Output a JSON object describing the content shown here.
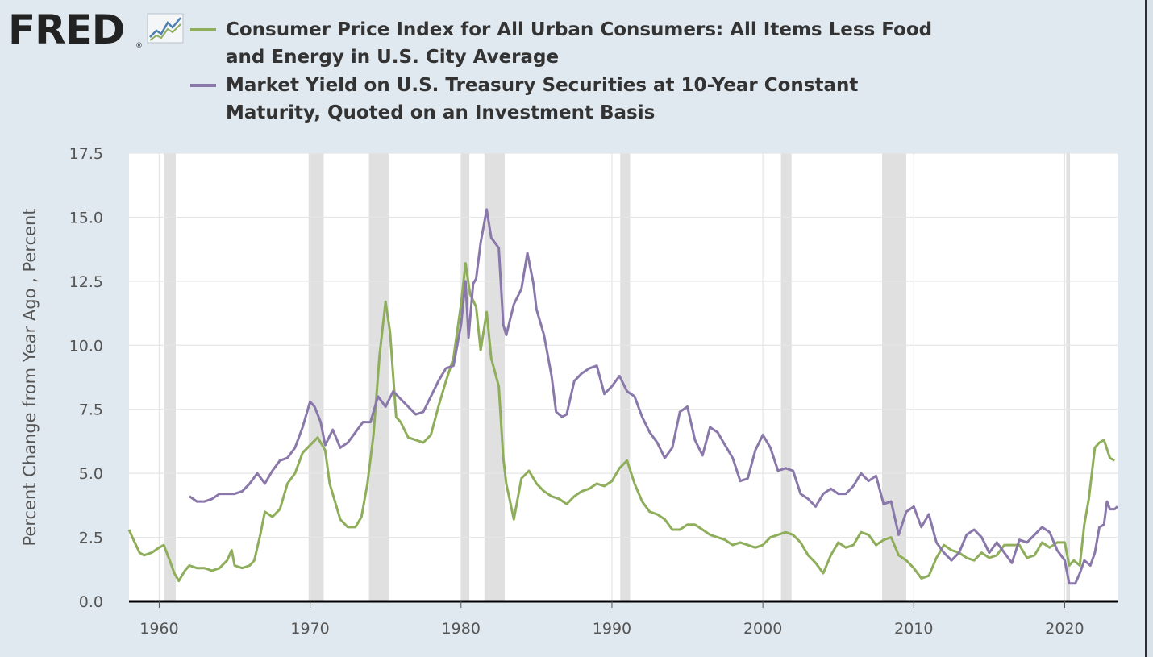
{
  "logo": {
    "text": "FRED",
    "reg": "®",
    "icon": "fred-graph-icon"
  },
  "chart_data": {
    "type": "line",
    "title": "",
    "xlabel": "",
    "ylabel": "Percent Change from Year Ago , Percent",
    "xlim": [
      1958.0,
      2023.5
    ],
    "ylim": [
      0,
      17.5
    ],
    "y_ticks": [
      "0.0",
      "2.5",
      "5.0",
      "7.5",
      "10.0",
      "12.5",
      "15.0",
      "17.5"
    ],
    "x_ticks": [
      "1960",
      "1970",
      "1980",
      "1990",
      "2000",
      "2010",
      "2020"
    ],
    "grid": true,
    "legend_placement": "top-left",
    "recessions": [
      [
        1960.3,
        1961.1
      ],
      [
        1969.9,
        1970.9
      ],
      [
        1973.9,
        1975.2
      ],
      [
        1980.0,
        1980.55
      ],
      [
        1981.55,
        1982.9
      ],
      [
        1990.55,
        1991.2
      ],
      [
        2001.2,
        2001.9
      ],
      [
        2007.9,
        2009.5
      ],
      [
        2020.1,
        2020.35
      ]
    ],
    "series": [
      {
        "name": "Consumer Price Index for All Urban Consumers: All Items Less Food and Energy in U.S. City Average",
        "color": "#8fae5b",
        "points": [
          [
            1958.0,
            2.8
          ],
          [
            1958.3,
            2.4
          ],
          [
            1958.7,
            1.9
          ],
          [
            1959.0,
            1.8
          ],
          [
            1959.5,
            1.9
          ],
          [
            1960.0,
            2.1
          ],
          [
            1960.3,
            2.2
          ],
          [
            1960.7,
            1.6
          ],
          [
            1961.0,
            1.1
          ],
          [
            1961.3,
            0.8
          ],
          [
            1961.7,
            1.2
          ],
          [
            1962.0,
            1.4
          ],
          [
            1962.5,
            1.3
          ],
          [
            1963.0,
            1.3
          ],
          [
            1963.5,
            1.2
          ],
          [
            1964.0,
            1.3
          ],
          [
            1964.5,
            1.6
          ],
          [
            1964.8,
            2.0
          ],
          [
            1965.0,
            1.4
          ],
          [
            1965.5,
            1.3
          ],
          [
            1966.0,
            1.4
          ],
          [
            1966.3,
            1.6
          ],
          [
            1966.7,
            2.6
          ],
          [
            1967.0,
            3.5
          ],
          [
            1967.5,
            3.3
          ],
          [
            1968.0,
            3.6
          ],
          [
            1968.5,
            4.6
          ],
          [
            1969.0,
            5.0
          ],
          [
            1969.5,
            5.8
          ],
          [
            1970.0,
            6.1
          ],
          [
            1970.5,
            6.4
          ],
          [
            1971.0,
            5.9
          ],
          [
            1971.3,
            4.6
          ],
          [
            1971.7,
            3.8
          ],
          [
            1972.0,
            3.2
          ],
          [
            1972.5,
            2.9
          ],
          [
            1973.0,
            2.9
          ],
          [
            1973.4,
            3.3
          ],
          [
            1973.8,
            4.6
          ],
          [
            1974.2,
            6.5
          ],
          [
            1974.6,
            9.6
          ],
          [
            1975.0,
            11.7
          ],
          [
            1975.3,
            10.5
          ],
          [
            1975.7,
            7.2
          ],
          [
            1976.0,
            7.0
          ],
          [
            1976.5,
            6.4
          ],
          [
            1977.0,
            6.3
          ],
          [
            1977.5,
            6.2
          ],
          [
            1978.0,
            6.5
          ],
          [
            1978.5,
            7.6
          ],
          [
            1979.0,
            8.6
          ],
          [
            1979.5,
            9.5
          ],
          [
            1980.0,
            11.6
          ],
          [
            1980.3,
            13.2
          ],
          [
            1980.6,
            12.0
          ],
          [
            1981.0,
            11.5
          ],
          [
            1981.3,
            9.8
          ],
          [
            1981.7,
            11.3
          ],
          [
            1982.0,
            9.5
          ],
          [
            1982.5,
            8.4
          ],
          [
            1982.8,
            5.6
          ],
          [
            1983.0,
            4.6
          ],
          [
            1983.5,
            3.2
          ],
          [
            1984.0,
            4.8
          ],
          [
            1984.5,
            5.1
          ],
          [
            1985.0,
            4.6
          ],
          [
            1985.5,
            4.3
          ],
          [
            1986.0,
            4.1
          ],
          [
            1986.5,
            4.0
          ],
          [
            1987.0,
            3.8
          ],
          [
            1987.5,
            4.1
          ],
          [
            1988.0,
            4.3
          ],
          [
            1988.5,
            4.4
          ],
          [
            1989.0,
            4.6
          ],
          [
            1989.5,
            4.5
          ],
          [
            1990.0,
            4.7
          ],
          [
            1990.5,
            5.2
          ],
          [
            1991.0,
            5.5
          ],
          [
            1991.5,
            4.6
          ],
          [
            1992.0,
            3.9
          ],
          [
            1992.5,
            3.5
          ],
          [
            1993.0,
            3.4
          ],
          [
            1993.5,
            3.2
          ],
          [
            1994.0,
            2.8
          ],
          [
            1994.5,
            2.8
          ],
          [
            1995.0,
            3.0
          ],
          [
            1995.5,
            3.0
          ],
          [
            1996.0,
            2.8
          ],
          [
            1996.5,
            2.6
          ],
          [
            1997.0,
            2.5
          ],
          [
            1997.5,
            2.4
          ],
          [
            1998.0,
            2.2
          ],
          [
            1998.5,
            2.3
          ],
          [
            1999.0,
            2.2
          ],
          [
            1999.5,
            2.1
          ],
          [
            2000.0,
            2.2
          ],
          [
            2000.5,
            2.5
          ],
          [
            2001.0,
            2.6
          ],
          [
            2001.5,
            2.7
          ],
          [
            2002.0,
            2.6
          ],
          [
            2002.5,
            2.3
          ],
          [
            2003.0,
            1.8
          ],
          [
            2003.5,
            1.5
          ],
          [
            2004.0,
            1.1
          ],
          [
            2004.5,
            1.8
          ],
          [
            2005.0,
            2.3
          ],
          [
            2005.5,
            2.1
          ],
          [
            2006.0,
            2.2
          ],
          [
            2006.5,
            2.7
          ],
          [
            2007.0,
            2.6
          ],
          [
            2007.5,
            2.2
          ],
          [
            2008.0,
            2.4
          ],
          [
            2008.5,
            2.5
          ],
          [
            2009.0,
            1.8
          ],
          [
            2009.5,
            1.6
          ],
          [
            2010.0,
            1.3
          ],
          [
            2010.5,
            0.9
          ],
          [
            2011.0,
            1.0
          ],
          [
            2011.5,
            1.7
          ],
          [
            2012.0,
            2.2
          ],
          [
            2012.5,
            2.0
          ],
          [
            2013.0,
            1.9
          ],
          [
            2013.5,
            1.7
          ],
          [
            2014.0,
            1.6
          ],
          [
            2014.5,
            1.9
          ],
          [
            2015.0,
            1.7
          ],
          [
            2015.5,
            1.8
          ],
          [
            2016.0,
            2.2
          ],
          [
            2016.5,
            2.2
          ],
          [
            2017.0,
            2.2
          ],
          [
            2017.5,
            1.7
          ],
          [
            2018.0,
            1.8
          ],
          [
            2018.5,
            2.3
          ],
          [
            2019.0,
            2.1
          ],
          [
            2019.5,
            2.3
          ],
          [
            2020.0,
            2.3
          ],
          [
            2020.3,
            1.4
          ],
          [
            2020.6,
            1.6
          ],
          [
            2021.0,
            1.4
          ],
          [
            2021.3,
            3.0
          ],
          [
            2021.6,
            4.0
          ],
          [
            2022.0,
            6.0
          ],
          [
            2022.3,
            6.2
          ],
          [
            2022.6,
            6.3
          ],
          [
            2023.0,
            5.6
          ],
          [
            2023.3,
            5.5
          ]
        ]
      },
      {
        "name": "Market Yield on U.S. Treasury Securities at 10-Year Constant Maturity, Quoted on an Investment Basis",
        "color": "#8a78aa",
        "points": [
          [
            1962.0,
            4.1
          ],
          [
            1962.5,
            3.9
          ],
          [
            1963.0,
            3.9
          ],
          [
            1963.5,
            4.0
          ],
          [
            1964.0,
            4.2
          ],
          [
            1964.5,
            4.2
          ],
          [
            1965.0,
            4.2
          ],
          [
            1965.5,
            4.3
          ],
          [
            1966.0,
            4.6
          ],
          [
            1966.5,
            5.0
          ],
          [
            1967.0,
            4.6
          ],
          [
            1967.5,
            5.1
          ],
          [
            1968.0,
            5.5
          ],
          [
            1968.5,
            5.6
          ],
          [
            1969.0,
            6.0
          ],
          [
            1969.5,
            6.8
          ],
          [
            1970.0,
            7.8
          ],
          [
            1970.3,
            7.6
          ],
          [
            1970.7,
            7.0
          ],
          [
            1971.0,
            6.1
          ],
          [
            1971.5,
            6.7
          ],
          [
            1972.0,
            6.0
          ],
          [
            1972.5,
            6.2
          ],
          [
            1973.0,
            6.6
          ],
          [
            1973.5,
            7.0
          ],
          [
            1974.0,
            7.0
          ],
          [
            1974.5,
            8.0
          ],
          [
            1975.0,
            7.6
          ],
          [
            1975.5,
            8.2
          ],
          [
            1976.0,
            7.9
          ],
          [
            1976.5,
            7.6
          ],
          [
            1977.0,
            7.3
          ],
          [
            1977.5,
            7.4
          ],
          [
            1978.0,
            8.0
          ],
          [
            1978.5,
            8.6
          ],
          [
            1979.0,
            9.1
          ],
          [
            1979.5,
            9.2
          ],
          [
            1980.0,
            10.8
          ],
          [
            1980.3,
            12.5
          ],
          [
            1980.5,
            10.3
          ],
          [
            1980.8,
            12.4
          ],
          [
            1981.0,
            12.6
          ],
          [
            1981.3,
            14.0
          ],
          [
            1981.7,
            15.3
          ],
          [
            1982.0,
            14.2
          ],
          [
            1982.5,
            13.8
          ],
          [
            1982.8,
            10.8
          ],
          [
            1983.0,
            10.4
          ],
          [
            1983.5,
            11.6
          ],
          [
            1984.0,
            12.2
          ],
          [
            1984.4,
            13.6
          ],
          [
            1984.8,
            12.4
          ],
          [
            1985.0,
            11.4
          ],
          [
            1985.5,
            10.4
          ],
          [
            1986.0,
            8.8
          ],
          [
            1986.3,
            7.4
          ],
          [
            1986.7,
            7.2
          ],
          [
            1987.0,
            7.3
          ],
          [
            1987.5,
            8.6
          ],
          [
            1988.0,
            8.9
          ],
          [
            1988.5,
            9.1
          ],
          [
            1989.0,
            9.2
          ],
          [
            1989.5,
            8.1
          ],
          [
            1990.0,
            8.4
          ],
          [
            1990.5,
            8.8
          ],
          [
            1991.0,
            8.2
          ],
          [
            1991.5,
            8.0
          ],
          [
            1992.0,
            7.2
          ],
          [
            1992.5,
            6.6
          ],
          [
            1993.0,
            6.2
          ],
          [
            1993.5,
            5.6
          ],
          [
            1994.0,
            6.0
          ],
          [
            1994.5,
            7.4
          ],
          [
            1995.0,
            7.6
          ],
          [
            1995.5,
            6.3
          ],
          [
            1996.0,
            5.7
          ],
          [
            1996.5,
            6.8
          ],
          [
            1997.0,
            6.6
          ],
          [
            1997.5,
            6.1
          ],
          [
            1998.0,
            5.6
          ],
          [
            1998.5,
            4.7
          ],
          [
            1999.0,
            4.8
          ],
          [
            1999.5,
            5.9
          ],
          [
            2000.0,
            6.5
          ],
          [
            2000.5,
            6.0
          ],
          [
            2001.0,
            5.1
          ],
          [
            2001.5,
            5.2
          ],
          [
            2002.0,
            5.1
          ],
          [
            2002.5,
            4.2
          ],
          [
            2003.0,
            4.0
          ],
          [
            2003.5,
            3.7
          ],
          [
            2004.0,
            4.2
          ],
          [
            2004.5,
            4.4
          ],
          [
            2005.0,
            4.2
          ],
          [
            2005.5,
            4.2
          ],
          [
            2006.0,
            4.5
          ],
          [
            2006.5,
            5.0
          ],
          [
            2007.0,
            4.7
          ],
          [
            2007.5,
            4.9
          ],
          [
            2008.0,
            3.8
          ],
          [
            2008.5,
            3.9
          ],
          [
            2009.0,
            2.6
          ],
          [
            2009.5,
            3.5
          ],
          [
            2010.0,
            3.7
          ],
          [
            2010.5,
            2.9
          ],
          [
            2011.0,
            3.4
          ],
          [
            2011.5,
            2.3
          ],
          [
            2012.0,
            1.9
          ],
          [
            2012.5,
            1.6
          ],
          [
            2013.0,
            1.9
          ],
          [
            2013.5,
            2.6
          ],
          [
            2014.0,
            2.8
          ],
          [
            2014.5,
            2.5
          ],
          [
            2015.0,
            1.9
          ],
          [
            2015.5,
            2.3
          ],
          [
            2016.0,
            1.9
          ],
          [
            2016.5,
            1.5
          ],
          [
            2017.0,
            2.4
          ],
          [
            2017.5,
            2.3
          ],
          [
            2018.0,
            2.6
          ],
          [
            2018.5,
            2.9
          ],
          [
            2019.0,
            2.7
          ],
          [
            2019.5,
            2.0
          ],
          [
            2020.0,
            1.6
          ],
          [
            2020.3,
            0.7
          ],
          [
            2020.7,
            0.7
          ],
          [
            2021.0,
            1.1
          ],
          [
            2021.3,
            1.6
          ],
          [
            2021.7,
            1.4
          ],
          [
            2022.0,
            1.9
          ],
          [
            2022.3,
            2.9
          ],
          [
            2022.6,
            3.0
          ],
          [
            2022.8,
            3.9
          ],
          [
            2023.0,
            3.6
          ],
          [
            2023.3,
            3.6
          ],
          [
            2023.5,
            3.7
          ]
        ]
      }
    ]
  }
}
